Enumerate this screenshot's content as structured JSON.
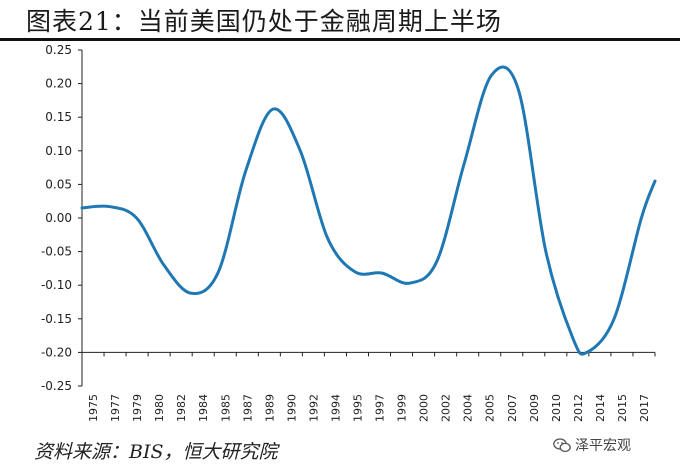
{
  "header": {
    "title": "图表21：当前美国仍处于金融周期上半场"
  },
  "footer": {
    "source": "资料来源：BIS，恒大研究院"
  },
  "watermark": {
    "text": "泽平宏观",
    "icon": "wechat-icon"
  },
  "chart_data": {
    "type": "line",
    "title": "图表21：当前美国仍处于金融周期上半场",
    "xlabel": "",
    "ylabel": "",
    "ylim": [
      -0.25,
      0.25
    ],
    "yticks": [
      -0.25,
      -0.2,
      -0.15,
      -0.1,
      -0.05,
      0.0,
      0.05,
      0.1,
      0.15,
      0.2,
      0.25
    ],
    "ytick_labels": [
      "-0.25",
      "-0.20",
      "-0.15",
      "-0.10",
      "-0.05",
      "0.00",
      "0.05",
      "0.10",
      "0.15",
      "0.20",
      "0.25"
    ],
    "xlim": [
      1975,
      2017
    ],
    "xtick_labels": [
      "1975",
      "1977",
      "1979",
      "1980",
      "1982",
      "1984",
      "1985",
      "1987",
      "1989",
      "1990",
      "1992",
      "1994",
      "1995",
      "1997",
      "1999",
      "2000",
      "2002",
      "2004",
      "2005",
      "2007",
      "2009",
      "2010",
      "2012",
      "2014",
      "2015",
      "2017"
    ],
    "grid": false,
    "line_color": "#1f77b4",
    "series": [
      {
        "x": [
          1975,
          1977,
          1979,
          1981,
          1983,
          1985,
          1987,
          1989,
          1991,
          1993,
          1995,
          1997,
          1999,
          2001,
          2003,
          2005,
          2007,
          2009,
          2011,
          2012,
          2014,
          2016,
          2017
        ],
        "values": [
          0.015,
          0.017,
          0.0,
          -0.07,
          -0.112,
          -0.08,
          0.07,
          0.162,
          0.1,
          -0.03,
          -0.08,
          -0.082,
          -0.097,
          -0.065,
          0.08,
          0.212,
          0.19,
          -0.05,
          -0.18,
          -0.2,
          -0.15,
          0.0,
          0.055
        ]
      }
    ]
  }
}
